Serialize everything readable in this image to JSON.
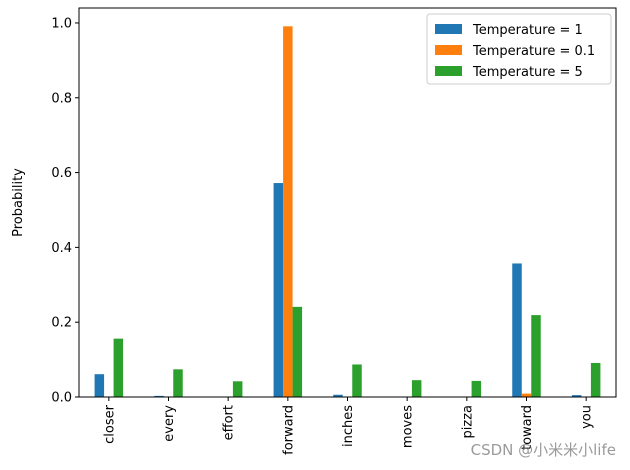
{
  "chart_data": {
    "type": "bar",
    "title": "",
    "xlabel": "",
    "ylabel": "Probability",
    "ylim": [
      0,
      1.04
    ],
    "yticks": [
      0.0,
      0.2,
      0.4,
      0.6,
      0.8,
      1.0
    ],
    "ytick_labels": [
      "0.0",
      "0.2",
      "0.4",
      "0.6",
      "0.8",
      "1.0"
    ],
    "categories": [
      "closer",
      "every",
      "effort",
      "forward",
      "inches",
      "moves",
      "pizza",
      "toward",
      "you"
    ],
    "series": [
      {
        "name": "Temperature = 1",
        "color": "#1f77b4",
        "values": [
          0.061,
          0.003,
          0.0,
          0.572,
          0.006,
          0.001,
          0.0,
          0.357,
          0.005
        ]
      },
      {
        "name": "Temperature = 0.1",
        "color": "#ff7f0e",
        "values": [
          0.0,
          0.0,
          0.0,
          0.991,
          0.0,
          0.0,
          0.0,
          0.009,
          0.0
        ]
      },
      {
        "name": "Temperature = 5",
        "color": "#2ca02c",
        "values": [
          0.156,
          0.074,
          0.042,
          0.241,
          0.087,
          0.045,
          0.043,
          0.219,
          0.091
        ]
      }
    ],
    "legend_position": "top-right"
  },
  "watermark": "CSDN @小米米小life"
}
